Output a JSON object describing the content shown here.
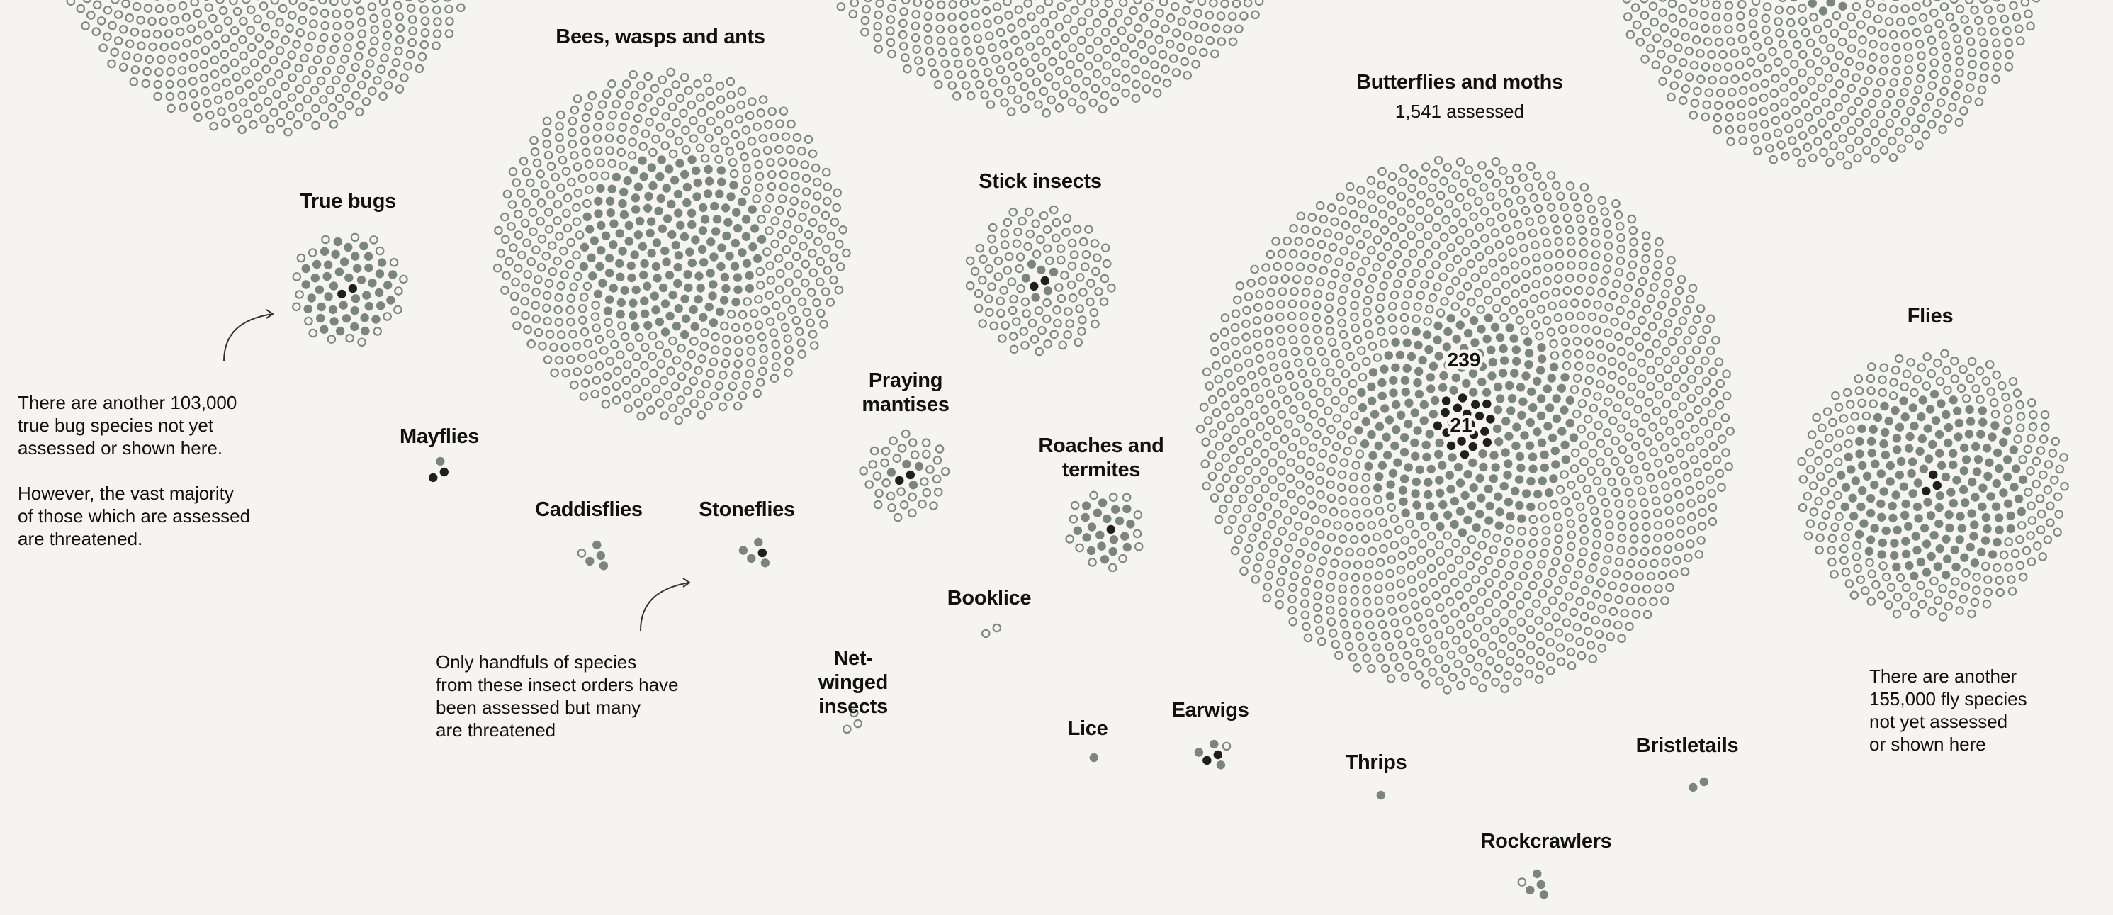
{
  "colors": {
    "background": "#f5f4f0",
    "open": "#7c8880",
    "gray": "#7b857e",
    "black": "#1f1f1f",
    "text": "#111111"
  },
  "chart_data": {
    "type": "scatter",
    "title": "",
    "groups": [
      {
        "label": "",
        "total": 1000,
        "gray": 0,
        "black": 0
      },
      {
        "label": "",
        "total": 1500,
        "gray": 0,
        "black": 0
      },
      {
        "label": "",
        "total": 1000,
        "gray": 70,
        "black": 8
      },
      {
        "label": "True bugs",
        "total": 70,
        "gray": 48,
        "black": 2
      },
      {
        "label": "Bees, wasps and ants",
        "total": 666,
        "gray": 180,
        "black": 0
      },
      {
        "label": "Stick insects",
        "total": 118,
        "gray": 6,
        "black": 2
      },
      {
        "label": "Butterflies and moths",
        "subtitle": "1,541 assessed",
        "total": 1541,
        "gray": 239,
        "black": 21,
        "value_labels": [
          "239",
          "21"
        ]
      },
      {
        "label": "Flies",
        "total": 392,
        "gray": 184,
        "black": 3
      },
      {
        "label": "Praying mantises",
        "total": 41,
        "gray": 4,
        "black": 2
      },
      {
        "label": "Roaches and termites",
        "total": 34,
        "gray": 20,
        "black": 1
      },
      {
        "label": "Mayflies",
        "total": 3,
        "gray": 1,
        "black": 2
      },
      {
        "label": "Caddisflies",
        "total": 5,
        "gray": 4,
        "black": 0
      },
      {
        "label": "Stoneflies",
        "total": 5,
        "gray": 4,
        "black": 1
      },
      {
        "label": "Booklice",
        "total": 2,
        "gray": 0,
        "black": 0
      },
      {
        "label": "Net-winged insects",
        "total": 3,
        "gray": 0,
        "black": 0
      },
      {
        "label": "Lice",
        "total": 1,
        "gray": 1,
        "black": 0
      },
      {
        "label": "Earwigs",
        "total": 6,
        "gray": 3,
        "black": 2
      },
      {
        "label": "Thrips",
        "total": 1,
        "gray": 1,
        "black": 0
      },
      {
        "label": "Bristletails",
        "total": 2,
        "gray": 2,
        "black": 0
      },
      {
        "label": "Rockcrawlers",
        "total": 5,
        "gray": 4,
        "black": 0
      }
    ]
  },
  "annotations": {
    "true_bugs": [
      "There are another 103,000",
      "true bug species not yet",
      "assessed or shown here."
    ],
    "true_bugs_2": [
      "However, the vast majority",
      "of those which are assessed",
      "are threatened."
    ],
    "handfuls": [
      "Only handfuls of species",
      "from these insect orders have",
      "been assessed but many",
      "are threatened"
    ],
    "flies": [
      "There are another",
      "155,000 fly species",
      "not yet assessed",
      "or shown here"
    ]
  }
}
